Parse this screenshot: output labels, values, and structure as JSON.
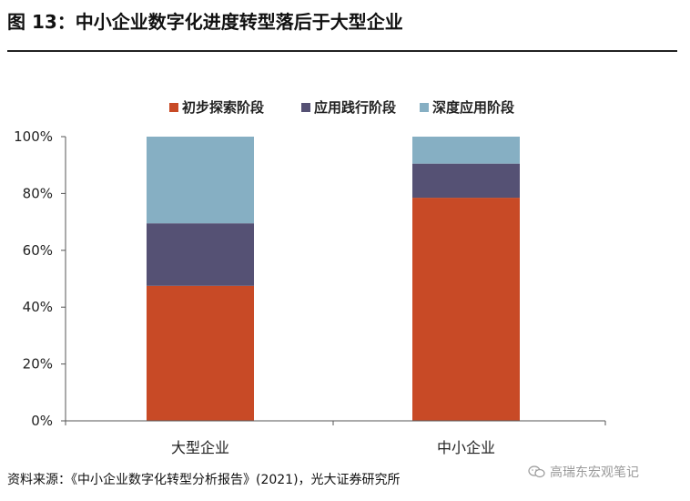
{
  "header": {
    "title": "图 13：中小企业数字化进度转型落后于大型企业"
  },
  "footer": {
    "source": "资料来源：《中小企业数字化转型分析报告》(2021)，光大证券研究所",
    "watermark": "高瑞东宏观笔记",
    "watermark_icon": "wechat-icon"
  },
  "chart_data": {
    "type": "bar",
    "stacked": true,
    "categories": [
      "大型企业",
      "中小企业"
    ],
    "series": [
      {
        "name": "初步探索阶段",
        "color": "#c84a26",
        "values": [
          47.5,
          78.5
        ]
      },
      {
        "name": "应用践行阶段",
        "color": "#555174",
        "values": [
          22.0,
          12.0
        ]
      },
      {
        "name": "深度应用阶段",
        "color": "#86afc3",
        "values": [
          30.5,
          9.5
        ]
      }
    ],
    "ylim": [
      0,
      100
    ],
    "yticks": [
      "0%",
      "20%",
      "40%",
      "60%",
      "80%",
      "100%"
    ],
    "ytick_values": [
      0,
      20,
      40,
      60,
      80,
      100
    ],
    "legend_position": "top",
    "grid": false
  }
}
